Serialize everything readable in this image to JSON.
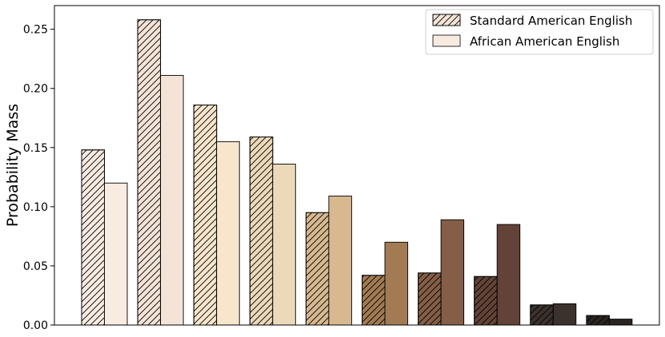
{
  "chart_data": {
    "type": "bar",
    "title": "",
    "xlabel": "",
    "ylabel": "Probability Mass",
    "ylim": [
      0,
      0.27
    ],
    "yticks": [
      0.0,
      0.05,
      0.1,
      0.15,
      0.2,
      0.25
    ],
    "ytick_labels": [
      "0.00",
      "0.05",
      "0.10",
      "0.15",
      "0.20",
      "0.25"
    ],
    "categories": [
      "",
      "",
      "",
      "",
      "",
      "",
      "",
      "",
      "",
      ""
    ],
    "series": [
      {
        "name": "Standard American English",
        "hatched": true,
        "values": [
          0.148,
          0.258,
          0.186,
          0.159,
          0.095,
          0.042,
          0.044,
          0.041,
          0.017,
          0.008
        ]
      },
      {
        "name": "African American English",
        "hatched": false,
        "values": [
          0.12,
          0.211,
          0.155,
          0.136,
          0.109,
          0.07,
          0.089,
          0.085,
          0.018,
          0.005
        ]
      }
    ],
    "bar_colors": [
      "#f8ebe2",
      "#f4e4d8",
      "#f7e6cc",
      "#ecd9ba",
      "#d7b88f",
      "#a27b54",
      "#845e46",
      "#634337",
      "#3b312d",
      "#2a2522"
    ],
    "grid": false,
    "legend_position": "top-right",
    "legend_swatch_colors": [
      "#f4e4d8",
      "#f7ebe0"
    ]
  }
}
